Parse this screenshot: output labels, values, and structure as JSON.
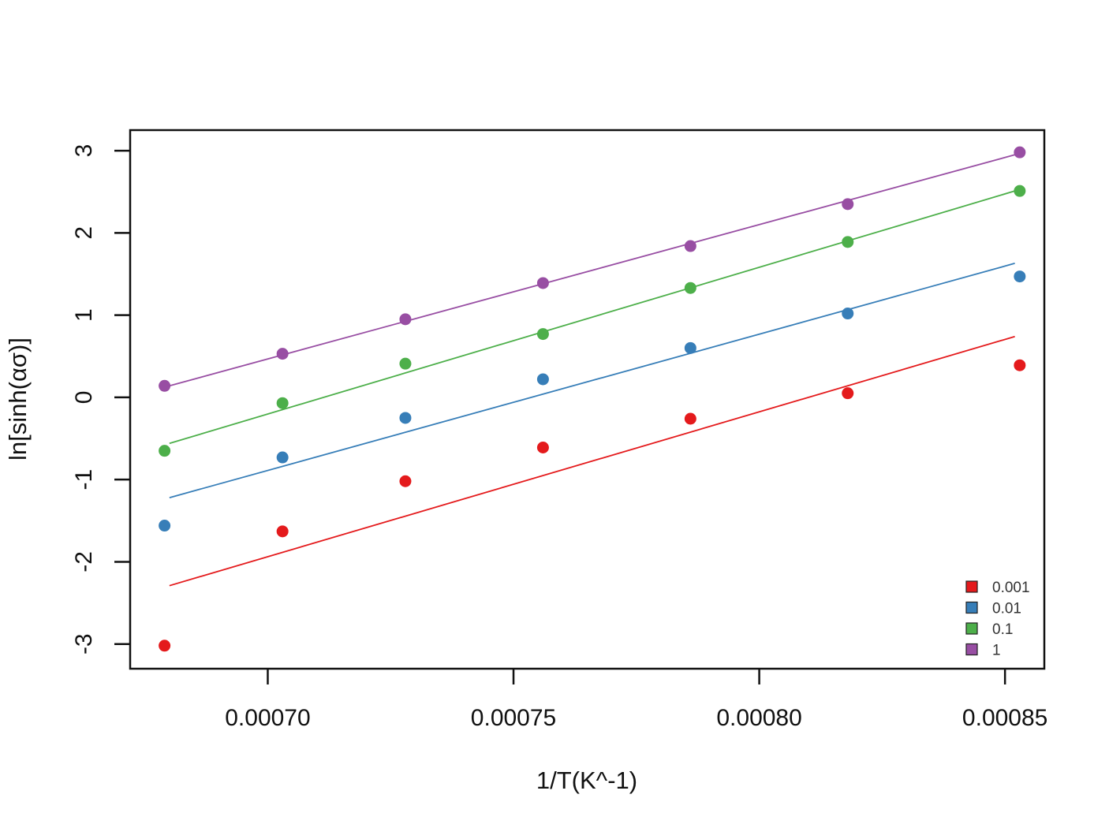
{
  "chart_data": {
    "type": "scatter",
    "xlabel": "1/T(K^-1)",
    "ylabel": "ln[sinh(ασ)]",
    "xlim": [
      0.000672,
      0.000858
    ],
    "ylim": [
      -3.3,
      3.25
    ],
    "x_ticks": [
      {
        "value": 0.0007,
        "label": "0.00070"
      },
      {
        "value": 0.00075,
        "label": "0.00075"
      },
      {
        "value": 0.0008,
        "label": "0.00080"
      },
      {
        "value": 0.00085,
        "label": "0.00085"
      }
    ],
    "y_ticks": [
      {
        "value": -3,
        "label": "-3"
      },
      {
        "value": -2,
        "label": "-2"
      },
      {
        "value": -1,
        "label": "-1"
      },
      {
        "value": 0,
        "label": "0"
      },
      {
        "value": 1,
        "label": "1"
      },
      {
        "value": 2,
        "label": "2"
      },
      {
        "value": 3,
        "label": "3"
      }
    ],
    "grid": false,
    "legend_position": "bottom-right",
    "x": [
      0.000679,
      0.000703,
      0.000728,
      0.000756,
      0.000786,
      0.000818,
      0.000853
    ],
    "series": [
      {
        "name": "0.001",
        "color": "#e41a1c",
        "values": [
          -3.02,
          -1.63,
          -1.02,
          -0.61,
          -0.26,
          0.05,
          0.39
        ],
        "fit": {
          "x": [
            0.00068,
            0.000852
          ],
          "y": [
            -2.29,
            0.74
          ]
        }
      },
      {
        "name": "0.01",
        "color": "#377eb8",
        "values": [
          -1.56,
          -0.73,
          -0.25,
          0.22,
          0.6,
          1.02,
          1.47
        ],
        "fit": {
          "x": [
            0.00068,
            0.000852
          ],
          "y": [
            -1.22,
            1.63
          ]
        }
      },
      {
        "name": "0.1",
        "color": "#4daf4a",
        "values": [
          -0.65,
          -0.07,
          0.41,
          0.77,
          1.33,
          1.89,
          2.51
        ],
        "fit": {
          "x": [
            0.00068,
            0.000852
          ],
          "y": [
            -0.56,
            2.51
          ]
        }
      },
      {
        "name": "1",
        "color": "#984ea3",
        "values": [
          0.14,
          0.53,
          0.95,
          1.39,
          1.84,
          2.35,
          2.98
        ],
        "fit": {
          "x": [
            0.00068,
            0.000852
          ],
          "y": [
            0.14,
            2.95
          ]
        }
      }
    ]
  }
}
